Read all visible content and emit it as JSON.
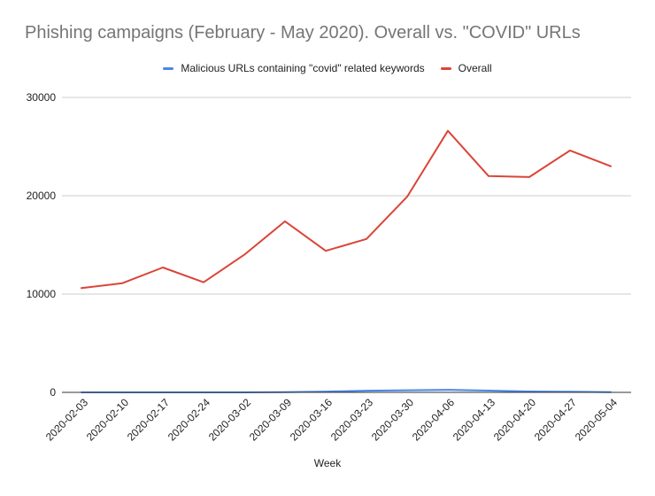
{
  "chart_data": {
    "type": "line",
    "title": "Phishing campaigns (February - May 2020). Overall vs. \"COVID\" URLs",
    "xlabel": "Week",
    "ylabel": "",
    "ylim": [
      0,
      30000
    ],
    "yticks": [
      "0",
      "10000",
      "20000",
      "30000"
    ],
    "grid": true,
    "legend_position": "top",
    "categories": [
      "2020-02-03",
      "2020-02-10",
      "2020-02-17",
      "2020-02-24",
      "2020-03-02",
      "2020-03-09",
      "2020-03-16",
      "2020-03-23",
      "2020-03-30",
      "2020-04-06",
      "2020-04-13",
      "2020-04-20",
      "2020-04-27",
      "2020-05-04"
    ],
    "series": [
      {
        "name": "Malicious URLs containing \"covid\" related keywords",
        "color": "#4a86e8",
        "values": [
          0,
          0,
          0,
          0,
          0,
          20,
          80,
          170,
          220,
          260,
          180,
          90,
          60,
          30
        ]
      },
      {
        "name": "Overall",
        "color": "#db4437",
        "values": [
          10600,
          11100,
          12700,
          11200,
          14000,
          17400,
          14400,
          15600,
          19900,
          26600,
          22000,
          21900,
          24600,
          23000
        ]
      }
    ]
  }
}
